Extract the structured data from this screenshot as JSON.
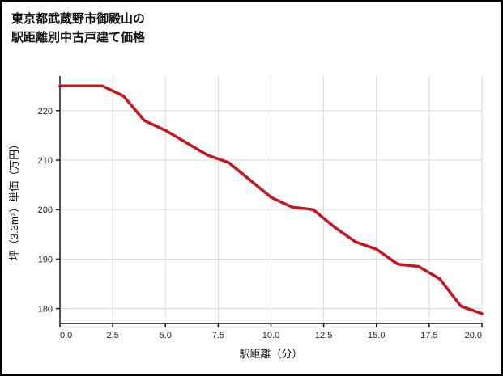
{
  "title": {
    "line1": "東京都武蔵野市御殿山の",
    "line2": "駅距離別中古戸建て価格"
  },
  "chart_data": {
    "type": "line",
    "title": "東京都武蔵野市御殿山の駅距離別中古戸建て価格",
    "xlabel": "駅距離（分）",
    "ylabel": "坪（3.3m²）単価（万円）",
    "x": [
      0,
      1,
      2,
      3,
      4,
      5,
      6,
      7,
      8,
      9,
      10,
      11,
      12,
      13,
      14,
      15,
      16,
      17,
      18,
      19,
      20
    ],
    "values": [
      225,
      225,
      225,
      223,
      218,
      216,
      213.5,
      211,
      209.5,
      206,
      202.5,
      200.5,
      200,
      196.5,
      193.5,
      192,
      189,
      188.5,
      186,
      180.5,
      179
    ],
    "xticks": [
      0,
      2.5,
      5,
      7.5,
      10,
      12.5,
      15,
      17.5,
      20
    ],
    "xtick_labels": [
      "0.0",
      "2.5",
      "5.0",
      "7.5",
      "10.0",
      "12.5",
      "15.0",
      "17.5",
      "20.0"
    ],
    "yticks": [
      180,
      190,
      200,
      210,
      220
    ],
    "ytick_labels": [
      "180",
      "190",
      "200",
      "210",
      "220"
    ],
    "xlim": [
      0,
      20
    ],
    "ylim": [
      177,
      227
    ],
    "grid": true,
    "legend": "none",
    "line_color": "#c9131c",
    "grid_color": "#d9d9d9",
    "axis_color": "#1a1a1a"
  }
}
